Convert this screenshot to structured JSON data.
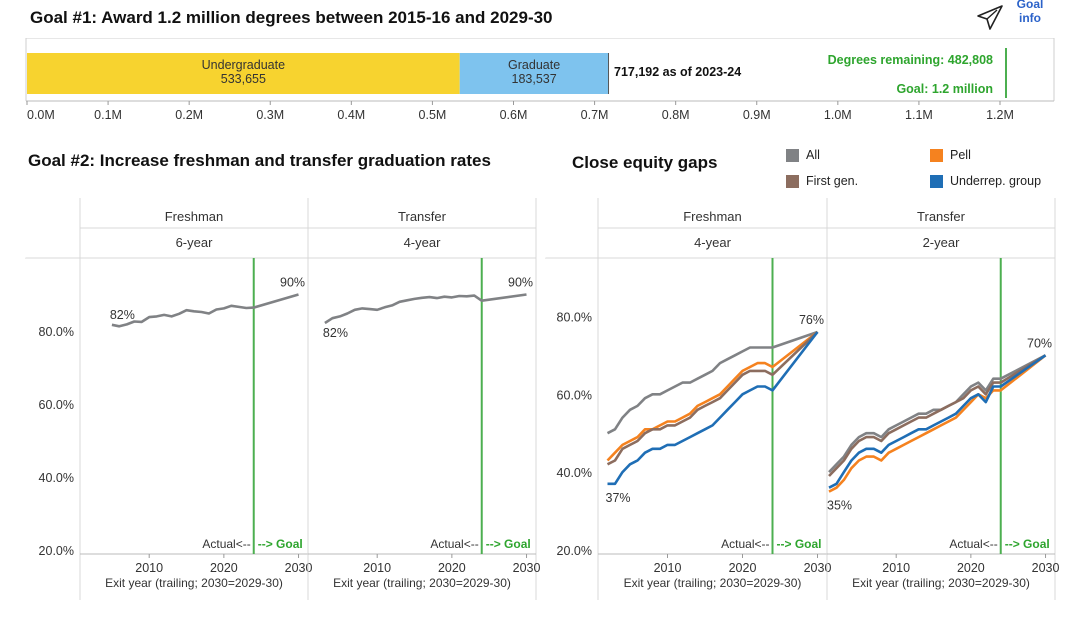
{
  "goal1": {
    "title": "Goal #1: Award 1.2 million degrees between 2015-16 and 2029-30",
    "undergrad_label": "Undergraduate",
    "undergrad_value": "533,655",
    "grad_label": "Graduate",
    "grad_value": "183,537",
    "asof_label": "717,192 as of 2023-24",
    "remaining_label": "Degrees remaining: 482,808",
    "goal_label": "Goal: 1.2 million",
    "axis_ticks": [
      "0.0M",
      "0.1M",
      "0.2M",
      "0.3M",
      "0.4M",
      "0.5M",
      "0.6M",
      "0.7M",
      "0.8M",
      "0.9M",
      "1.0M",
      "1.1M",
      "1.2M"
    ]
  },
  "goal_info": {
    "line1": "Goal",
    "line2": "info",
    "icon": "cursor-pointer-icon"
  },
  "goal2": {
    "title": "Goal #2: Increase freshman and transfer graduation rates"
  },
  "equity": {
    "title": "Close equity gaps"
  },
  "legend": [
    {
      "label": "All",
      "color": "#808285"
    },
    {
      "label": "Pell",
      "color": "#f5821f"
    },
    {
      "label": "First gen.",
      "color": "#8c6d5f"
    },
    {
      "label": "Underrep. group",
      "color": "#1f6eb5"
    }
  ],
  "panel_text": {
    "actual": "Actual<--",
    "goal": "--> Goal",
    "exit_label": "Exit year (trailing; 2030=2029-30)",
    "x_ticks": [
      "2010",
      "2020",
      "2030"
    ]
  },
  "chart_data": [
    {
      "type": "bar",
      "orientation": "horizontal-stacked",
      "series": [
        {
          "name": "Undergraduate",
          "value": 533655,
          "color": "#f7d32f"
        },
        {
          "name": "Graduate",
          "value": 183537,
          "color": "#7ec3ee"
        }
      ],
      "total": 717192,
      "goal": 1200000,
      "remaining": 482808,
      "xlim": [
        0,
        1200000
      ]
    },
    {
      "type": "line",
      "header": "Freshman",
      "subheader": "6-year",
      "y_ticks": [
        "80.0%",
        "60.0%",
        "40.0%",
        "20.0%"
      ],
      "ylim": [
        20,
        100
      ],
      "xlim": [
        2001,
        2031
      ],
      "goal_year": 2024,
      "series": [
        {
          "name": "All",
          "color": "#808285",
          "x": [
            2005,
            2006,
            2007,
            2008,
            2009,
            2010,
            2011,
            2012,
            2013,
            2014,
            2015,
            2016,
            2017,
            2018,
            2019,
            2020,
            2021,
            2022,
            2023,
            2024,
            2030
          ],
          "values": [
            81.7,
            81.3,
            81.8,
            82.6,
            82.5,
            83.8,
            84.0,
            84.4,
            84.0,
            84.7,
            85.7,
            85.4,
            85.2,
            84.8,
            85.9,
            86.2,
            86.9,
            86.6,
            86.3,
            86.4,
            90.0
          ]
        }
      ],
      "labels": [
        {
          "text": "82%",
          "x": 2005,
          "y": 81.7
        },
        {
          "text": "90%",
          "x": 2030,
          "y": 90.0
        }
      ]
    },
    {
      "type": "line",
      "header": "Transfer",
      "subheader": "4-year",
      "ylim": [
        20,
        100
      ],
      "xlim": [
        2001,
        2031
      ],
      "goal_year": 2024,
      "series": [
        {
          "name": "All",
          "color": "#808285",
          "x": [
            2003,
            2004,
            2005,
            2006,
            2007,
            2008,
            2009,
            2010,
            2011,
            2012,
            2013,
            2014,
            2015,
            2016,
            2017,
            2018,
            2019,
            2020,
            2021,
            2022,
            2023,
            2024,
            2030
          ],
          "values": [
            82.2,
            83.5,
            84.0,
            84.8,
            85.8,
            86.2,
            86.0,
            85.8,
            86.5,
            87.0,
            88.0,
            88.4,
            88.8,
            89.1,
            89.3,
            89.0,
            89.4,
            89.2,
            89.6,
            89.5,
            89.7,
            88.3,
            90.0
          ]
        }
      ],
      "labels": [
        {
          "text": "82%",
          "x": 2003,
          "y": 82.2
        },
        {
          "text": "90%",
          "x": 2030,
          "y": 90.0
        }
      ]
    },
    {
      "type": "line",
      "header": "Freshman",
      "subheader": "4-year",
      "y_ticks": [
        "80.0%",
        "60.0%",
        "40.0%",
        "20.0%"
      ],
      "ylim": [
        20,
        95
      ],
      "xlim": [
        2001,
        2031
      ],
      "goal_year": 2024,
      "series": [
        {
          "name": "All",
          "color": "#808285",
          "x": [
            2002,
            2003,
            2004,
            2005,
            2006,
            2007,
            2008,
            2009,
            2010,
            2011,
            2012,
            2013,
            2014,
            2015,
            2016,
            2017,
            2018,
            2019,
            2020,
            2021,
            2022,
            2023,
            2024,
            2030
          ],
          "values": [
            50,
            51,
            54,
            56,
            57,
            59,
            60,
            60,
            61,
            62,
            63,
            63,
            64,
            65,
            66,
            68,
            69,
            70,
            71,
            72,
            72,
            72,
            72,
            76
          ]
        },
        {
          "name": "Pell",
          "color": "#f5821f",
          "x": [
            2002,
            2003,
            2004,
            2005,
            2006,
            2007,
            2008,
            2009,
            2010,
            2011,
            2012,
            2013,
            2014,
            2015,
            2016,
            2017,
            2018,
            2019,
            2020,
            2021,
            2022,
            2023,
            2024,
            2030
          ],
          "values": [
            43,
            45,
            47,
            48,
            49,
            51,
            51,
            52,
            53,
            53,
            54,
            55,
            57,
            58,
            59,
            60,
            62,
            64,
            66,
            67,
            68,
            68,
            67,
            76
          ]
        },
        {
          "name": "First gen.",
          "color": "#8c6d5f",
          "x": [
            2002,
            2003,
            2004,
            2005,
            2006,
            2007,
            2008,
            2009,
            2010,
            2011,
            2012,
            2013,
            2014,
            2015,
            2016,
            2017,
            2018,
            2019,
            2020,
            2021,
            2022,
            2023,
            2024,
            2030
          ],
          "values": [
            42,
            43,
            46,
            47,
            48,
            50,
            51,
            51,
            52,
            52,
            53,
            54,
            56,
            57,
            58,
            59,
            61,
            63,
            65,
            66,
            66,
            66,
            65,
            76
          ]
        },
        {
          "name": "Underrep. group",
          "color": "#1f6eb5",
          "x": [
            2002,
            2003,
            2004,
            2005,
            2006,
            2007,
            2008,
            2009,
            2010,
            2011,
            2012,
            2013,
            2014,
            2015,
            2016,
            2017,
            2018,
            2019,
            2020,
            2021,
            2022,
            2023,
            2024,
            2030
          ],
          "values": [
            37,
            37,
            40,
            42,
            43,
            45,
            46,
            46,
            47,
            47,
            48,
            49,
            50,
            51,
            52,
            54,
            56,
            58,
            60,
            61,
            62,
            62,
            61,
            76
          ]
        }
      ],
      "labels": [
        {
          "text": "37%",
          "x": 2002,
          "y": 37
        },
        {
          "text": "76%",
          "x": 2030,
          "y": 76
        }
      ]
    },
    {
      "type": "line",
      "header": "Transfer",
      "subheader": "2-year",
      "ylim": [
        20,
        95
      ],
      "xlim": [
        2001,
        2031
      ],
      "goal_year": 2024,
      "series": [
        {
          "name": "All",
          "color": "#808285",
          "x": [
            2001,
            2002,
            2003,
            2004,
            2005,
            2006,
            2007,
            2008,
            2009,
            2010,
            2011,
            2012,
            2013,
            2014,
            2015,
            2016,
            2017,
            2018,
            2019,
            2020,
            2021,
            2022,
            2023,
            2024,
            2030
          ],
          "values": [
            40,
            42,
            44,
            47,
            49,
            50,
            50,
            49,
            51,
            52,
            53,
            54,
            55,
            55,
            56,
            56,
            57,
            58,
            60,
            62,
            63,
            61,
            64,
            64,
            70
          ]
        },
        {
          "name": "Pell",
          "color": "#f5821f",
          "x": [
            2001,
            2002,
            2003,
            2004,
            2005,
            2006,
            2007,
            2008,
            2009,
            2010,
            2011,
            2012,
            2013,
            2014,
            2015,
            2016,
            2017,
            2018,
            2019,
            2020,
            2021,
            2022,
            2023,
            2024,
            2030
          ],
          "values": [
            35,
            36,
            38,
            41,
            43,
            44,
            44,
            43,
            45,
            46,
            47,
            48,
            49,
            50,
            51,
            52,
            53,
            54,
            56,
            58,
            60,
            59,
            61,
            61,
            70
          ]
        },
        {
          "name": "First gen.",
          "color": "#8c6d5f",
          "x": [
            2001,
            2002,
            2003,
            2004,
            2005,
            2006,
            2007,
            2008,
            2009,
            2010,
            2011,
            2012,
            2013,
            2014,
            2015,
            2016,
            2017,
            2018,
            2019,
            2020,
            2021,
            2022,
            2023,
            2024,
            2030
          ],
          "values": [
            39,
            41,
            43,
            46,
            48,
            49,
            49,
            48,
            50,
            51,
            52,
            53,
            54,
            54,
            55,
            56,
            57,
            58,
            59,
            61,
            62,
            60,
            63,
            63,
            70
          ]
        },
        {
          "name": "Underrep. group",
          "color": "#1f6eb5",
          "x": [
            2001,
            2002,
            2003,
            2004,
            2005,
            2006,
            2007,
            2008,
            2009,
            2010,
            2011,
            2012,
            2013,
            2014,
            2015,
            2016,
            2017,
            2018,
            2019,
            2020,
            2021,
            2022,
            2023,
            2024,
            2030
          ],
          "values": [
            36,
            37,
            40,
            43,
            45,
            46,
            46,
            45,
            47,
            48,
            49,
            50,
            51,
            51,
            52,
            53,
            54,
            55,
            57,
            59,
            60,
            58,
            62,
            62,
            70
          ]
        }
      ],
      "labels": [
        {
          "text": "35%",
          "x": 2001,
          "y": 35
        },
        {
          "text": "70%",
          "x": 2030,
          "y": 70
        }
      ]
    }
  ]
}
